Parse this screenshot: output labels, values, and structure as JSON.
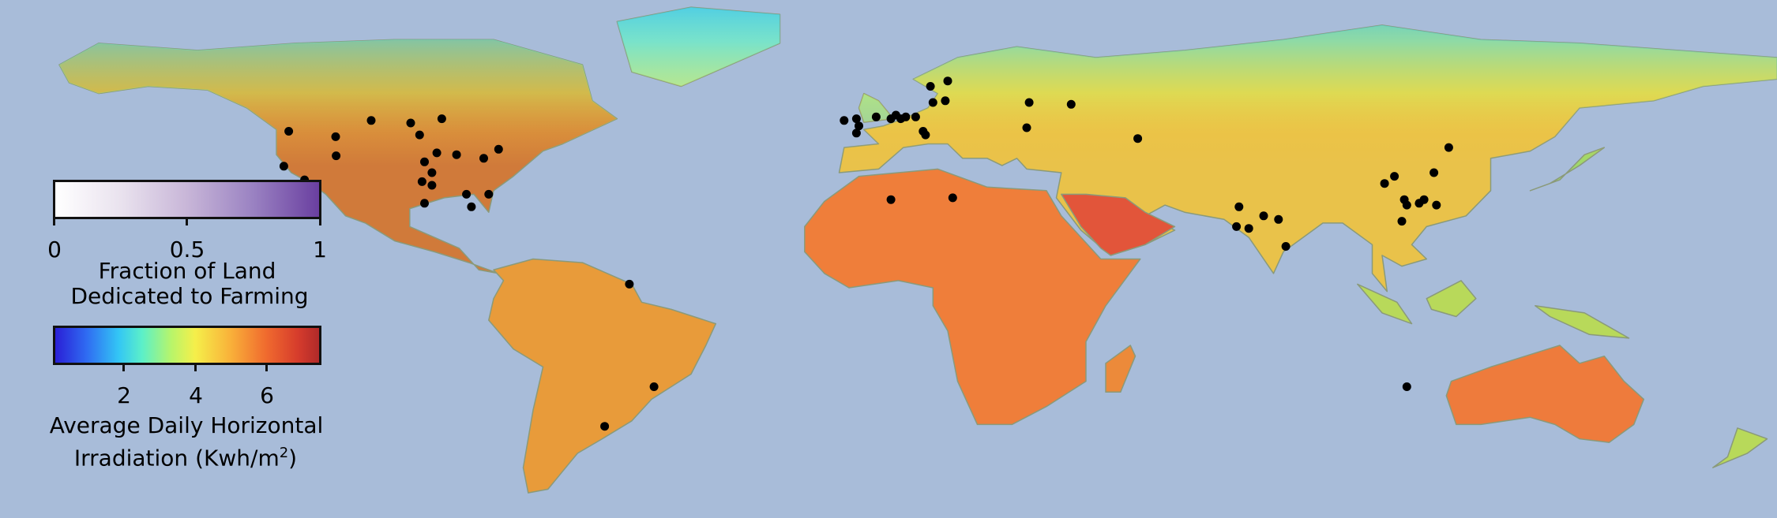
{
  "legend_farming": {
    "ticks": [
      "0",
      "0.5",
      "1"
    ],
    "title_line1": "Fraction of Land",
    "title_line2": "Dedicated to Farming"
  },
  "legend_irradiation": {
    "ticks": [
      "2",
      "4",
      "6"
    ],
    "title_line1": "Average Daily Horizontal",
    "title_line2_prefix": "Irradiation (Kwh/m",
    "title_line2_sup": "2",
    "title_line2_suffix": ")"
  },
  "colors": {
    "ocean": "#a8bcd9",
    "marker": "#000000"
  },
  "markers": [
    {
      "lon": -121.5,
      "lat": 47.5
    },
    {
      "lon": -122.5,
      "lat": 37.8
    },
    {
      "lon": -118.3,
      "lat": 34.0
    },
    {
      "lon": -112.0,
      "lat": 46.0
    },
    {
      "lon": -104.8,
      "lat": 50.5
    },
    {
      "lon": -96.8,
      "lat": 49.8
    },
    {
      "lon": -95.0,
      "lat": 46.5
    },
    {
      "lon": -90.5,
      "lat": 51.0
    },
    {
      "lon": -111.9,
      "lat": 40.7
    },
    {
      "lon": -94.0,
      "lat": 39.0
    },
    {
      "lon": -91.5,
      "lat": 41.5
    },
    {
      "lon": -87.5,
      "lat": 41.0
    },
    {
      "lon": -92.5,
      "lat": 36.0
    },
    {
      "lon": -94.5,
      "lat": 33.5
    },
    {
      "lon": -92.5,
      "lat": 32.5
    },
    {
      "lon": -94.0,
      "lat": 27.5
    },
    {
      "lon": -82.0,
      "lat": 40.0
    },
    {
      "lon": -79.0,
      "lat": 42.5
    },
    {
      "lon": -81.0,
      "lat": 30.0
    },
    {
      "lon": -85.5,
      "lat": 30.0
    },
    {
      "lon": -84.5,
      "lat": 26.5
    },
    {
      "lon": -52.5,
      "lat": 5.0
    },
    {
      "lon": -47.5,
      "lat": -23.5
    },
    {
      "lon": -57.5,
      "lat": -34.5
    },
    {
      "lon": -9.0,
      "lat": 50.5
    },
    {
      "lon": -6.5,
      "lat": 51.0
    },
    {
      "lon": -6.0,
      "lat": 49.0
    },
    {
      "lon": -6.5,
      "lat": 47.0
    },
    {
      "lon": -2.5,
      "lat": 51.5
    },
    {
      "lon": 0.5,
      "lat": 51.0
    },
    {
      "lon": 1.5,
      "lat": 52.0
    },
    {
      "lon": 2.5,
      "lat": 51.0
    },
    {
      "lon": 3.5,
      "lat": 51.5
    },
    {
      "lon": 5.5,
      "lat": 51.5
    },
    {
      "lon": 9.0,
      "lat": 55.5
    },
    {
      "lon": 11.5,
      "lat": 56.0
    },
    {
      "lon": 8.5,
      "lat": 60.0
    },
    {
      "lon": 12.0,
      "lat": 61.5
    },
    {
      "lon": 7.0,
      "lat": 47.5
    },
    {
      "lon": 7.5,
      "lat": 46.5
    },
    {
      "lon": 28.5,
      "lat": 55.5
    },
    {
      "lon": 37.0,
      "lat": 55.0
    },
    {
      "lon": 28.0,
      "lat": 48.5
    },
    {
      "lon": 50.5,
      "lat": 45.5
    },
    {
      "lon": 0.5,
      "lat": 28.5
    },
    {
      "lon": 13.0,
      "lat": 29.0
    },
    {
      "lon": 71.0,
      "lat": 26.5
    },
    {
      "lon": 70.5,
      "lat": 21.0
    },
    {
      "lon": 73.0,
      "lat": 20.5
    },
    {
      "lon": 76.0,
      "lat": 24.0
    },
    {
      "lon": 79.0,
      "lat": 23.0
    },
    {
      "lon": 80.5,
      "lat": 15.5
    },
    {
      "lon": 100.5,
      "lat": 33.0
    },
    {
      "lon": 102.5,
      "lat": 35.0
    },
    {
      "lon": 104.5,
      "lat": 28.5
    },
    {
      "lon": 105.0,
      "lat": 27.0
    },
    {
      "lon": 107.5,
      "lat": 27.5
    },
    {
      "lon": 108.5,
      "lat": 28.5
    },
    {
      "lon": 111.0,
      "lat": 27.0
    },
    {
      "lon": 110.5,
      "lat": 36.0
    },
    {
      "lon": 113.5,
      "lat": 43.0
    },
    {
      "lon": 104.0,
      "lat": 22.5
    },
    {
      "lon": 105.0,
      "lat": -23.5
    }
  ],
  "continents": [
    {
      "name": "north-america",
      "fill": "#d07a3a",
      "pts": [
        [
          -168,
          66
        ],
        [
          -160,
          72
        ],
        [
          -140,
          70
        ],
        [
          -120,
          72
        ],
        [
          -100,
          73
        ],
        [
          -80,
          73
        ],
        [
          -62,
          66
        ],
        [
          -60,
          56
        ],
        [
          -55,
          51
        ],
        [
          -66,
          44
        ],
        [
          -70,
          42
        ],
        [
          -76,
          35
        ],
        [
          -80,
          31
        ],
        [
          -81,
          25
        ],
        [
          -84,
          30
        ],
        [
          -90,
          29
        ],
        [
          -97,
          26
        ],
        [
          -97,
          21
        ],
        [
          -92,
          18
        ],
        [
          -87,
          15
        ],
        [
          -83,
          9
        ],
        [
          -79,
          8
        ],
        [
          -85,
          11
        ],
        [
          -92,
          14
        ],
        [
          -100,
          17
        ],
        [
          -106,
          22
        ],
        [
          -110,
          24
        ],
        [
          -114,
          30
        ],
        [
          -117,
          33
        ],
        [
          -121,
          36
        ],
        [
          -124,
          41
        ],
        [
          -124,
          48
        ],
        [
          -130,
          54
        ],
        [
          -138,
          59
        ],
        [
          -150,
          60
        ],
        [
          -160,
          58
        ],
        [
          -166,
          61
        ]
      ]
    },
    {
      "name": "south-america",
      "fill": "#e89b3a",
      "pts": [
        [
          -80,
          9
        ],
        [
          -72,
          12
        ],
        [
          -62,
          11
        ],
        [
          -52,
          5
        ],
        [
          -50,
          0
        ],
        [
          -44,
          -2
        ],
        [
          -35,
          -6
        ],
        [
          -37,
          -12
        ],
        [
          -40,
          -20
        ],
        [
          -48,
          -27
        ],
        [
          -52,
          -33
        ],
        [
          -58,
          -38
        ],
        [
          -63,
          -42
        ],
        [
          -66,
          -47
        ],
        [
          -69,
          -52
        ],
        [
          -73,
          -53
        ],
        [
          -74,
          -46
        ],
        [
          -72,
          -30
        ],
        [
          -70,
          -18
        ],
        [
          -76,
          -13
        ],
        [
          -81,
          -5
        ],
        [
          -80,
          1
        ],
        [
          -78,
          6
        ]
      ]
    },
    {
      "name": "africa",
      "fill": "#ef7e3a",
      "pts": [
        [
          -17,
          21
        ],
        [
          -13,
          28
        ],
        [
          -6,
          35
        ],
        [
          10,
          37
        ],
        [
          20,
          32
        ],
        [
          32,
          31
        ],
        [
          35,
          24
        ],
        [
          43,
          12
        ],
        [
          51,
          12
        ],
        [
          44,
          -1
        ],
        [
          40,
          -11
        ],
        [
          40,
          -22
        ],
        [
          32,
          -29
        ],
        [
          25,
          -34
        ],
        [
          18,
          -34
        ],
        [
          14,
          -22
        ],
        [
          12,
          -8
        ],
        [
          9,
          -1
        ],
        [
          9,
          4
        ],
        [
          2,
          6
        ],
        [
          -8,
          4
        ],
        [
          -13,
          8
        ],
        [
          -17,
          14
        ]
      ]
    },
    {
      "name": "eurasia",
      "fill": "#e9c24a",
      "pts": [
        [
          -10,
          36
        ],
        [
          -9,
          43
        ],
        [
          -2,
          44
        ],
        [
          -5,
          48
        ],
        [
          -1,
          49
        ],
        [
          3,
          51
        ],
        [
          8,
          54
        ],
        [
          10,
          58
        ],
        [
          5,
          62
        ],
        [
          14,
          68
        ],
        [
          26,
          71
        ],
        [
          42,
          68
        ],
        [
          60,
          70
        ],
        [
          80,
          73
        ],
        [
          100,
          77
        ],
        [
          120,
          73
        ],
        [
          140,
          72
        ],
        [
          160,
          70
        ],
        [
          180,
          68
        ],
        [
          180,
          62
        ],
        [
          165,
          60
        ],
        [
          155,
          56
        ],
        [
          140,
          54
        ],
        [
          135,
          46
        ],
        [
          130,
          42
        ],
        [
          122,
          40
        ],
        [
          122,
          31
        ],
        [
          117,
          24
        ],
        [
          109,
          21
        ],
        [
          106,
          16
        ],
        [
          109,
          12
        ],
        [
          104,
          10
        ],
        [
          100,
          13
        ],
        [
          101,
          3
        ],
        [
          98,
          8
        ],
        [
          98,
          16
        ],
        [
          92,
          22
        ],
        [
          88,
          22
        ],
        [
          80,
          14
        ],
        [
          78,
          8
        ],
        [
          73,
          18
        ],
        [
          68,
          23
        ],
        [
          60,
          25
        ],
        [
          56,
          27
        ],
        [
          52,
          24
        ],
        [
          58,
          20
        ],
        [
          52,
          16
        ],
        [
          45,
          13
        ],
        [
          39,
          20
        ],
        [
          34,
          29
        ],
        [
          35,
          36
        ],
        [
          28,
          37
        ],
        [
          26,
          40
        ],
        [
          23,
          38
        ],
        [
          20,
          40
        ],
        [
          15,
          40
        ],
        [
          12,
          44
        ],
        [
          8,
          44
        ],
        [
          3,
          43
        ],
        [
          -2,
          37
        ]
      ]
    },
    {
      "name": "arabia-highlight",
      "fill": "#e2553a",
      "pts": [
        [
          35,
          30
        ],
        [
          40,
          30
        ],
        [
          48,
          29
        ],
        [
          52,
          25
        ],
        [
          58,
          21
        ],
        [
          52,
          16
        ],
        [
          45,
          13
        ],
        [
          43,
          15
        ],
        [
          39,
          21
        ]
      ]
    },
    {
      "name": "australia",
      "fill": "#ee7b3c",
      "pts": [
        [
          114,
          -22
        ],
        [
          122,
          -18
        ],
        [
          129,
          -15
        ],
        [
          136,
          -12
        ],
        [
          140,
          -17
        ],
        [
          145,
          -15
        ],
        [
          149,
          -22
        ],
        [
          153,
          -27
        ],
        [
          151,
          -34
        ],
        [
          146,
          -39
        ],
        [
          140,
          -38
        ],
        [
          135,
          -34
        ],
        [
          130,
          -32
        ],
        [
          120,
          -34
        ],
        [
          115,
          -34
        ],
        [
          113,
          -26
        ]
      ]
    },
    {
      "name": "madagascar",
      "fill": "#ec8a3a",
      "pts": [
        [
          44,
          -25
        ],
        [
          47,
          -25
        ],
        [
          50,
          -15
        ],
        [
          49,
          -12
        ],
        [
          44,
          -17
        ]
      ]
    },
    {
      "name": "greenland",
      "fill": "#9fdfc8",
      "pts": [
        [
          -55,
          78
        ],
        [
          -40,
          82
        ],
        [
          -22,
          80
        ],
        [
          -22,
          72
        ],
        [
          -42,
          60
        ],
        [
          -52,
          64
        ]
      ]
    },
    {
      "name": "indonesia",
      "fill": "#b8d95a",
      "pts": [
        [
          95,
          5
        ],
        [
          103,
          0
        ],
        [
          106,
          -6
        ],
        [
          100,
          -3
        ]
      ]
    },
    {
      "name": "borneo",
      "fill": "#b8d95a",
      "pts": [
        [
          109,
          1
        ],
        [
          116,
          6
        ],
        [
          119,
          1
        ],
        [
          115,
          -4
        ],
        [
          110,
          -2
        ]
      ]
    },
    {
      "name": "new-guinea",
      "fill": "#b8d95a",
      "pts": [
        [
          131,
          -1
        ],
        [
          141,
          -3
        ],
        [
          150,
          -10
        ],
        [
          142,
          -9
        ],
        [
          134,
          -4
        ]
      ]
    },
    {
      "name": "japan",
      "fill": "#9fd96a",
      "pts": [
        [
          130,
          31
        ],
        [
          136,
          34
        ],
        [
          141,
          41
        ],
        [
          145,
          43
        ],
        [
          140,
          38
        ],
        [
          134,
          33
        ]
      ]
    },
    {
      "name": "uk",
      "fill": "#7fd8c0",
      "pts": [
        [
          -5,
          50
        ],
        [
          1,
          51
        ],
        [
          -2,
          56
        ],
        [
          -5,
          58
        ],
        [
          -6,
          54
        ]
      ]
    },
    {
      "name": "new-zealand",
      "fill": "#b8d95a",
      "pts": [
        [
          172,
          -35
        ],
        [
          178,
          -38
        ],
        [
          174,
          -42
        ],
        [
          167,
          -46
        ],
        [
          170,
          -43
        ]
      ]
    }
  ]
}
